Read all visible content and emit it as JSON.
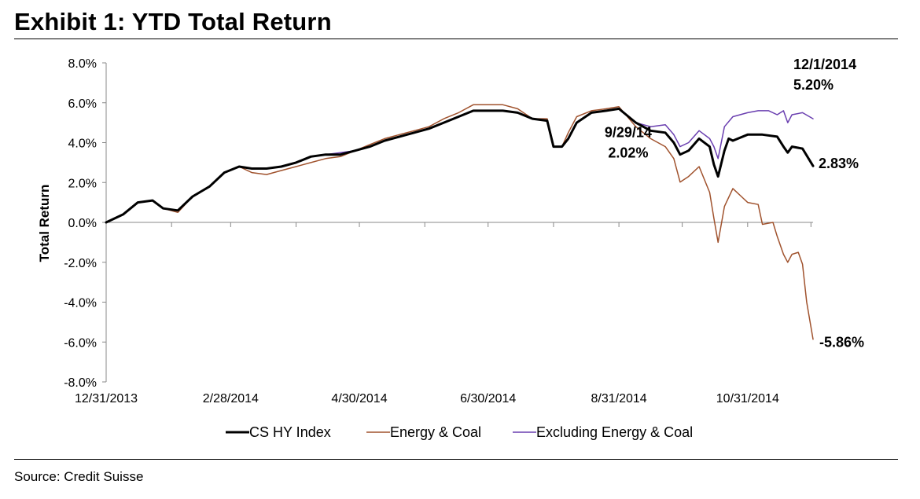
{
  "title": "Exhibit 1: YTD Total Return",
  "source": "Source: Credit Suisse",
  "chart_data": {
    "type": "line",
    "ylabel": "Total Return",
    "xlabel": "",
    "ylim": [
      -8,
      8
    ],
    "y_ticks": [
      "8.0%",
      "6.0%",
      "4.0%",
      "2.0%",
      "0.0%",
      "-2.0%",
      "-4.0%",
      "-6.0%",
      "-8.0%"
    ],
    "x_ticks": [
      "12/31/2013",
      "2/28/2014",
      "4/30/2014",
      "6/30/2014",
      "8/31/2014",
      "10/31/2014"
    ],
    "x_tick_dates": [
      "2013-12-31",
      "2014-02-28",
      "2014-04-30",
      "2014-06-30",
      "2014-08-31",
      "2014-10-31"
    ],
    "xlim": [
      "2013-12-31",
      "2014-12-01"
    ],
    "grid": false,
    "legend_position": "bottom",
    "series": [
      {
        "name": "CS HY Index",
        "color": "#000000",
        "width": 3,
        "points": [
          [
            "2013-12-31",
            0.0
          ],
          [
            "2014-01-08",
            0.4
          ],
          [
            "2014-01-15",
            1.0
          ],
          [
            "2014-01-22",
            1.1
          ],
          [
            "2014-01-27",
            0.7
          ],
          [
            "2014-02-03",
            0.6
          ],
          [
            "2014-02-10",
            1.3
          ],
          [
            "2014-02-18",
            1.8
          ],
          [
            "2014-02-25",
            2.5
          ],
          [
            "2014-03-04",
            2.8
          ],
          [
            "2014-03-10",
            2.7
          ],
          [
            "2014-03-17",
            2.7
          ],
          [
            "2014-03-24",
            2.8
          ],
          [
            "2014-03-31",
            3.0
          ],
          [
            "2014-04-07",
            3.3
          ],
          [
            "2014-04-14",
            3.4
          ],
          [
            "2014-04-21",
            3.4
          ],
          [
            "2014-04-28",
            3.6
          ],
          [
            "2014-05-05",
            3.8
          ],
          [
            "2014-05-12",
            4.1
          ],
          [
            "2014-05-19",
            4.3
          ],
          [
            "2014-05-26",
            4.5
          ],
          [
            "2014-06-02",
            4.7
          ],
          [
            "2014-06-09",
            5.0
          ],
          [
            "2014-06-16",
            5.3
          ],
          [
            "2014-06-23",
            5.6
          ],
          [
            "2014-06-30",
            5.6
          ],
          [
            "2014-07-07",
            5.6
          ],
          [
            "2014-07-14",
            5.5
          ],
          [
            "2014-07-21",
            5.2
          ],
          [
            "2014-07-28",
            5.1
          ],
          [
            "2014-07-31",
            3.8
          ],
          [
            "2014-08-04",
            3.8
          ],
          [
            "2014-08-07",
            4.2
          ],
          [
            "2014-08-11",
            5.0
          ],
          [
            "2014-08-18",
            5.5
          ],
          [
            "2014-08-25",
            5.6
          ],
          [
            "2014-08-31",
            5.7
          ],
          [
            "2014-09-08",
            5.0
          ],
          [
            "2014-09-15",
            4.6
          ],
          [
            "2014-09-22",
            4.5
          ],
          [
            "2014-09-26",
            4.0
          ],
          [
            "2014-09-29",
            3.4
          ],
          [
            "2014-10-03",
            3.6
          ],
          [
            "2014-10-08",
            4.2
          ],
          [
            "2014-10-13",
            3.8
          ],
          [
            "2014-10-15",
            2.9
          ],
          [
            "2014-10-17",
            2.3
          ],
          [
            "2014-10-20",
            3.6
          ],
          [
            "2014-10-22",
            4.2
          ],
          [
            "2014-10-24",
            4.1
          ],
          [
            "2014-10-31",
            4.4
          ],
          [
            "2014-11-07",
            4.4
          ],
          [
            "2014-11-14",
            4.3
          ],
          [
            "2014-11-17",
            3.8
          ],
          [
            "2014-11-19",
            3.5
          ],
          [
            "2014-11-21",
            3.8
          ],
          [
            "2014-11-26",
            3.7
          ],
          [
            "2014-12-01",
            2.83
          ]
        ]
      },
      {
        "name": "Energy & Coal",
        "color": "#A0522D",
        "width": 1.5,
        "points": [
          [
            "2013-12-31",
            0.0
          ],
          [
            "2014-01-08",
            0.4
          ],
          [
            "2014-01-15",
            1.0
          ],
          [
            "2014-01-22",
            1.1
          ],
          [
            "2014-01-27",
            0.7
          ],
          [
            "2014-02-03",
            0.5
          ],
          [
            "2014-02-10",
            1.3
          ],
          [
            "2014-02-18",
            1.8
          ],
          [
            "2014-02-25",
            2.5
          ],
          [
            "2014-03-04",
            2.8
          ],
          [
            "2014-03-10",
            2.5
          ],
          [
            "2014-03-17",
            2.4
          ],
          [
            "2014-03-24",
            2.6
          ],
          [
            "2014-03-31",
            2.8
          ],
          [
            "2014-04-07",
            3.0
          ],
          [
            "2014-04-14",
            3.2
          ],
          [
            "2014-04-21",
            3.3
          ],
          [
            "2014-04-28",
            3.6
          ],
          [
            "2014-05-05",
            3.9
          ],
          [
            "2014-05-12",
            4.2
          ],
          [
            "2014-05-19",
            4.4
          ],
          [
            "2014-05-26",
            4.6
          ],
          [
            "2014-06-02",
            4.8
          ],
          [
            "2014-06-09",
            5.2
          ],
          [
            "2014-06-16",
            5.5
          ],
          [
            "2014-06-23",
            5.9
          ],
          [
            "2014-06-30",
            5.9
          ],
          [
            "2014-07-07",
            5.9
          ],
          [
            "2014-07-14",
            5.7
          ],
          [
            "2014-07-21",
            5.2
          ],
          [
            "2014-07-28",
            5.2
          ],
          [
            "2014-07-31",
            3.8
          ],
          [
            "2014-08-04",
            3.8
          ],
          [
            "2014-08-07",
            4.5
          ],
          [
            "2014-08-11",
            5.3
          ],
          [
            "2014-08-18",
            5.6
          ],
          [
            "2014-08-25",
            5.7
          ],
          [
            "2014-08-31",
            5.8
          ],
          [
            "2014-09-08",
            4.8
          ],
          [
            "2014-09-15",
            4.2
          ],
          [
            "2014-09-22",
            3.8
          ],
          [
            "2014-09-26",
            3.2
          ],
          [
            "2014-09-29",
            2.02
          ],
          [
            "2014-10-03",
            2.3
          ],
          [
            "2014-10-08",
            2.8
          ],
          [
            "2014-10-13",
            1.5
          ],
          [
            "2014-10-15",
            0.2
          ],
          [
            "2014-10-17",
            -1.0
          ],
          [
            "2014-10-20",
            0.8
          ],
          [
            "2014-10-24",
            1.7
          ],
          [
            "2014-10-29",
            1.2
          ],
          [
            "2014-10-31",
            1.0
          ],
          [
            "2014-11-05",
            0.9
          ],
          [
            "2014-11-07",
            -0.1
          ],
          [
            "2014-11-12",
            0.0
          ],
          [
            "2014-11-14",
            -0.7
          ],
          [
            "2014-11-17",
            -1.6
          ],
          [
            "2014-11-19",
            -2.0
          ],
          [
            "2014-11-21",
            -1.6
          ],
          [
            "2014-11-24",
            -1.5
          ],
          [
            "2014-11-26",
            -2.1
          ],
          [
            "2014-11-28",
            -4.0
          ],
          [
            "2014-12-01",
            -5.86
          ]
        ]
      },
      {
        "name": "Excluding Energy & Coal",
        "color": "#6A3FB0",
        "width": 1.5,
        "points": [
          [
            "2013-12-31",
            0.0
          ],
          [
            "2014-01-08",
            0.4
          ],
          [
            "2014-01-15",
            1.0
          ],
          [
            "2014-01-22",
            1.1
          ],
          [
            "2014-01-27",
            0.7
          ],
          [
            "2014-02-03",
            0.6
          ],
          [
            "2014-02-10",
            1.3
          ],
          [
            "2014-02-18",
            1.8
          ],
          [
            "2014-02-25",
            2.5
          ],
          [
            "2014-03-04",
            2.8
          ],
          [
            "2014-03-10",
            2.7
          ],
          [
            "2014-03-17",
            2.7
          ],
          [
            "2014-03-24",
            2.8
          ],
          [
            "2014-03-31",
            3.0
          ],
          [
            "2014-04-07",
            3.3
          ],
          [
            "2014-04-14",
            3.4
          ],
          [
            "2014-04-21",
            3.5
          ],
          [
            "2014-04-28",
            3.6
          ],
          [
            "2014-05-05",
            3.8
          ],
          [
            "2014-05-12",
            4.1
          ],
          [
            "2014-05-19",
            4.3
          ],
          [
            "2014-05-26",
            4.5
          ],
          [
            "2014-06-02",
            4.7
          ],
          [
            "2014-06-09",
            5.0
          ],
          [
            "2014-06-16",
            5.3
          ],
          [
            "2014-06-23",
            5.6
          ],
          [
            "2014-06-30",
            5.6
          ],
          [
            "2014-07-07",
            5.6
          ],
          [
            "2014-07-14",
            5.5
          ],
          [
            "2014-07-21",
            5.2
          ],
          [
            "2014-07-28",
            5.1
          ],
          [
            "2014-07-31",
            3.8
          ],
          [
            "2014-08-04",
            3.8
          ],
          [
            "2014-08-07",
            4.2
          ],
          [
            "2014-08-11",
            5.0
          ],
          [
            "2014-08-18",
            5.5
          ],
          [
            "2014-08-25",
            5.6
          ],
          [
            "2014-08-31",
            5.7
          ],
          [
            "2014-09-08",
            5.0
          ],
          [
            "2014-09-15",
            4.8
          ],
          [
            "2014-09-22",
            4.9
          ],
          [
            "2014-09-26",
            4.4
          ],
          [
            "2014-09-29",
            3.8
          ],
          [
            "2014-10-03",
            4.0
          ],
          [
            "2014-10-08",
            4.6
          ],
          [
            "2014-10-13",
            4.2
          ],
          [
            "2014-10-15",
            3.8
          ],
          [
            "2014-10-17",
            3.2
          ],
          [
            "2014-10-20",
            4.8
          ],
          [
            "2014-10-24",
            5.3
          ],
          [
            "2014-10-31",
            5.5
          ],
          [
            "2014-11-05",
            5.6
          ],
          [
            "2014-11-10",
            5.6
          ],
          [
            "2014-11-14",
            5.4
          ],
          [
            "2014-11-17",
            5.6
          ],
          [
            "2014-11-19",
            5.0
          ],
          [
            "2014-11-21",
            5.4
          ],
          [
            "2014-11-26",
            5.5
          ],
          [
            "2014-12-01",
            5.2
          ]
        ]
      }
    ],
    "annotations": [
      {
        "lines": [
          "12/1/2014",
          "5.20%"
        ],
        "x": "2014-12-01",
        "y": 5.2
      },
      {
        "lines": [
          "2.83%"
        ],
        "x": "2014-12-01",
        "y": 2.83
      },
      {
        "lines": [
          "9/29/14",
          "2.02%"
        ],
        "x": "2014-09-29",
        "y": 2.02
      },
      {
        "lines": [
          "-5.86%"
        ],
        "x": "2014-12-01",
        "y": -5.86
      }
    ]
  }
}
